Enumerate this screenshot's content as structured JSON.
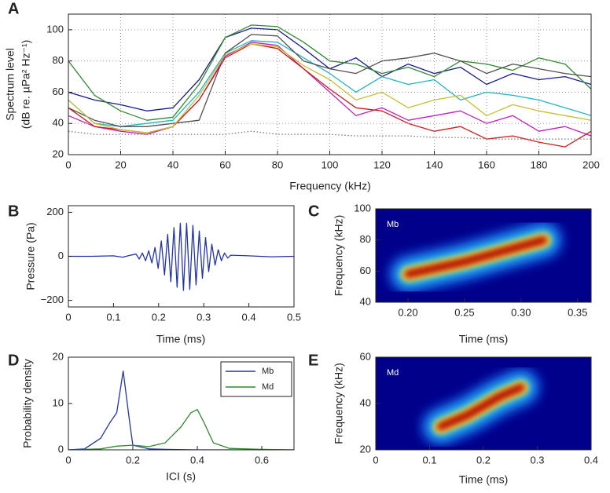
{
  "chart_data": [
    {
      "type": "line",
      "panel_label": "A",
      "xlabel": "Frequency (kHz)",
      "ylabel": [
        "Spectrum level",
        "(dB re. µPa² Hz⁻¹)"
      ],
      "xlim": [
        0,
        200
      ],
      "ylim": [
        20,
        110
      ],
      "xticks": [
        0,
        20,
        40,
        60,
        80,
        100,
        120,
        140,
        160,
        180,
        200
      ],
      "yticks": [
        20,
        40,
        60,
        80,
        100
      ],
      "grid": true,
      "x": [
        0,
        10,
        20,
        30,
        40,
        50,
        60,
        70,
        80,
        90,
        100,
        110,
        120,
        130,
        140,
        150,
        160,
        170,
        180,
        190,
        200
      ],
      "series": [
        {
          "color": "#1a1a8c",
          "values": [
            60,
            55,
            52,
            48,
            50,
            68,
            95,
            101,
            100,
            88,
            75,
            82,
            70,
            78,
            72,
            76,
            65,
            72,
            68,
            70,
            65
          ]
        },
        {
          "color": "#2e8b2e",
          "values": [
            80,
            58,
            48,
            42,
            44,
            65,
            95,
            103,
            102,
            92,
            80,
            78,
            72,
            76,
            70,
            80,
            78,
            74,
            82,
            78,
            62
          ]
        },
        {
          "color": "#20b5c0",
          "values": [
            55,
            40,
            38,
            40,
            42,
            60,
            85,
            93,
            92,
            82,
            72,
            60,
            70,
            65,
            68,
            55,
            60,
            58,
            55,
            50,
            45
          ]
        },
        {
          "color": "#505050",
          "values": [
            50,
            42,
            38,
            38,
            40,
            42,
            85,
            97,
            96,
            80,
            75,
            72,
            80,
            82,
            85,
            80,
            72,
            78,
            75,
            72,
            70
          ]
        },
        {
          "color": "#c020c0",
          "values": [
            45,
            38,
            35,
            33,
            38,
            55,
            83,
            92,
            90,
            75,
            60,
            45,
            50,
            42,
            45,
            48,
            40,
            45,
            35,
            38,
            32
          ]
        },
        {
          "color": "#c81e1e",
          "values": [
            50,
            38,
            36,
            34,
            38,
            55,
            82,
            91,
            88,
            75,
            62,
            50,
            48,
            40,
            35,
            38,
            30,
            32,
            28,
            25,
            35
          ]
        },
        {
          "color": "#c8c030",
          "values": [
            55,
            40,
            36,
            34,
            38,
            58,
            84,
            91,
            89,
            77,
            68,
            55,
            60,
            50,
            55,
            58,
            45,
            52,
            48,
            45,
            42
          ]
        },
        {
          "color": "#777777",
          "dash": "dotted",
          "values": [
            35,
            33,
            33,
            33,
            33,
            33,
            33,
            35,
            33,
            33,
            33,
            32,
            32,
            32,
            31,
            31,
            30,
            30,
            30,
            30,
            30
          ]
        }
      ]
    },
    {
      "type": "line",
      "panel_label": "B",
      "xlabel": "Time (ms)",
      "ylabel": "Pressure (Pa)",
      "xlim": [
        0,
        0.5
      ],
      "ylim": [
        -230,
        230
      ],
      "xticks": [
        0,
        0.1,
        0.2,
        0.3,
        0.4,
        0.5
      ],
      "yticks": [
        {
          "value": -200,
          "label": "−200"
        },
        0,
        200
      ],
      "grid": false,
      "color": "#2233aa",
      "x": [
        0,
        0.05,
        0.1,
        0.12,
        0.14,
        0.15,
        0.157,
        0.164,
        0.171,
        0.178,
        0.185,
        0.192,
        0.199,
        0.206,
        0.213,
        0.22,
        0.227,
        0.234,
        0.241,
        0.248,
        0.255,
        0.262,
        0.269,
        0.276,
        0.283,
        0.29,
        0.297,
        0.304,
        0.311,
        0.318,
        0.325,
        0.332,
        0.339,
        0.346,
        0.353,
        0.36,
        0.4,
        0.45,
        0.5
      ],
      "values": [
        0,
        0,
        2,
        -4,
        6,
        10,
        -12,
        15,
        -20,
        25,
        -30,
        40,
        -55,
        70,
        -85,
        100,
        -115,
        130,
        -140,
        150,
        -155,
        150,
        -150,
        140,
        -130,
        115,
        -100,
        85,
        -70,
        55,
        -40,
        30,
        -20,
        15,
        -8,
        5,
        2,
        -2,
        0
      ]
    },
    {
      "type": "spectrogram",
      "panel_label": "C",
      "annotation": "Mb",
      "xlabel": "Time (ms)",
      "ylabel": "Frequency (kHz)",
      "xlim": [
        0.1715,
        0.362
      ],
      "ylim": [
        40,
        100
      ],
      "xticks": [
        {
          "value": 0.2,
          "label": "0.20"
        },
        {
          "value": 0.25,
          "label": "0.25"
        },
        {
          "value": 0.3,
          "label": "0.30"
        },
        {
          "value": 0.35,
          "label": "0.35"
        }
      ],
      "yticks": [
        40,
        60,
        80,
        100
      ],
      "background": "#00008a",
      "x": [
        0.2,
        0.25,
        0.275,
        0.3,
        0.32
      ],
      "values": [
        58,
        66,
        71,
        76,
        80
      ]
    },
    {
      "type": "line",
      "panel_label": "D",
      "xlabel": "ICI (s)",
      "ylabel": "Probability density",
      "xlim": [
        0,
        0.7
      ],
      "ylim": [
        0,
        20
      ],
      "xticks": [
        0,
        0.2,
        0.4,
        0.6
      ],
      "yticks": [
        0,
        10,
        20
      ],
      "grid": false,
      "legend": "upper right",
      "series": [
        {
          "name": "Mb",
          "color": "#2233aa",
          "x": [
            0,
            0.05,
            0.1,
            0.13,
            0.15,
            0.17,
            0.19,
            0.2,
            0.25,
            0.3,
            0.4,
            0.5,
            0.7
          ],
          "values": [
            0,
            0.2,
            2.5,
            6,
            8,
            17,
            6,
            1,
            0.2,
            0.1,
            0,
            0,
            0
          ]
        },
        {
          "name": "Md",
          "color": "#2e8b2e",
          "x": [
            0,
            0.1,
            0.15,
            0.2,
            0.25,
            0.3,
            0.35,
            0.38,
            0.4,
            0.42,
            0.45,
            0.5,
            0.6,
            0.7
          ],
          "values": [
            0,
            0.2,
            0.8,
            1,
            0.7,
            1.5,
            5,
            8,
            8.7,
            6,
            1.5,
            0.3,
            0.1,
            0
          ]
        }
      ]
    },
    {
      "type": "spectrogram",
      "panel_label": "E",
      "annotation": "Md",
      "xlabel": "Time (ms)",
      "ylabel": "Frequency (kHz)",
      "xlim": [
        0,
        0.4
      ],
      "ylim": [
        20,
        60
      ],
      "xticks": [
        0,
        0.1,
        0.2,
        0.3,
        0.4
      ],
      "yticks": [
        20,
        40,
        60
      ],
      "background": "#00008a",
      "x": [
        0.12,
        0.17,
        0.2,
        0.23,
        0.27
      ],
      "values": [
        30,
        35,
        39,
        43,
        47
      ]
    }
  ]
}
